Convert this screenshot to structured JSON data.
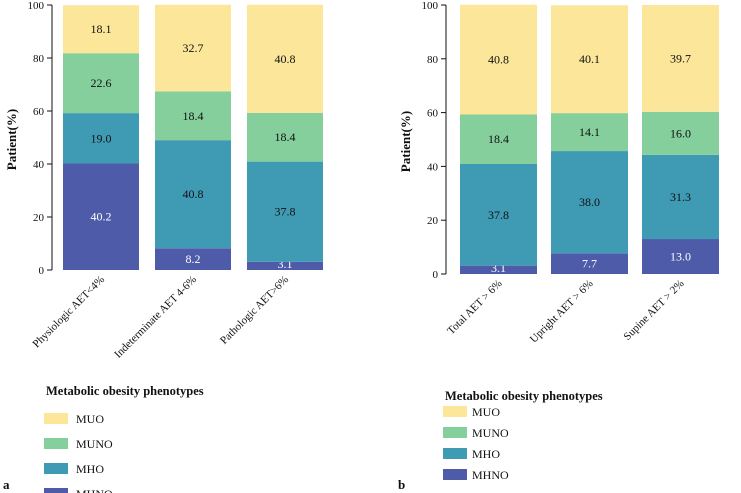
{
  "chart_data": [
    {
      "type": "bar",
      "stacked": true,
      "panel_label": "a",
      "ylabel": "Patient(%)",
      "ylim": [
        0,
        100
      ],
      "yticks": [
        "0",
        "20",
        "40",
        "60",
        "80",
        "100"
      ],
      "categories": [
        "Physiologic AET<4%",
        "Indeterminate AET 4-6%",
        "Pathologic AET>6%"
      ],
      "series": [
        {
          "name": "MHNO",
          "color": "#4e5ba8",
          "values": [
            40.2,
            8.2,
            3.1
          ],
          "labels": [
            "40.2",
            "8.2",
            "3.1"
          ]
        },
        {
          "name": "MHO",
          "color": "#3f9ab4",
          "values": [
            19.0,
            40.8,
            37.8
          ],
          "labels": [
            "19.0",
            "40.8",
            "37.8"
          ]
        },
        {
          "name": "MUNO",
          "color": "#84cf9c",
          "values": [
            22.6,
            18.4,
            18.4
          ],
          "labels": [
            "22.6",
            "18.4",
            "18.4"
          ]
        },
        {
          "name": "MUO",
          "color": "#fbe69a",
          "values": [
            18.1,
            32.7,
            40.8
          ],
          "labels": [
            "18.1",
            "32.7",
            "40.8"
          ]
        }
      ],
      "legend": {
        "title": "Metabolic obesity phenotypes",
        "items": [
          "MUO",
          "MUNO",
          "MHO",
          "MHNO"
        ]
      }
    },
    {
      "type": "bar",
      "stacked": true,
      "panel_label": "b",
      "ylabel": "Patient(%)",
      "ylim": [
        0,
        100
      ],
      "yticks": [
        "0",
        "20",
        "40",
        "60",
        "80",
        "100"
      ],
      "categories": [
        "Total AET > 6%",
        "Upright AET > 6%",
        "Supine AET > 2%"
      ],
      "series": [
        {
          "name": "MHNO",
          "color": "#4e5ba8",
          "values": [
            3.1,
            7.7,
            13.0
          ],
          "labels": [
            "3.1",
            "7.7",
            "13.0"
          ]
        },
        {
          "name": "MHO",
          "color": "#3f9ab4",
          "values": [
            37.8,
            38.0,
            31.3
          ],
          "labels": [
            "37.8",
            "38.0",
            "31.3"
          ]
        },
        {
          "name": "MUNO",
          "color": "#84cf9c",
          "values": [
            18.4,
            14.1,
            16.0
          ],
          "labels": [
            "18.4",
            "14.1",
            "16.0"
          ]
        },
        {
          "name": "MUO",
          "color": "#fbe69a",
          "values": [
            40.8,
            40.1,
            39.7
          ],
          "labels": [
            "40.8",
            "40.1",
            "39.7"
          ]
        }
      ],
      "legend": {
        "title": "Metabolic obesity phenotypes",
        "items": [
          "MUO",
          "MUNO",
          "MHO",
          "MHNO"
        ]
      }
    }
  ]
}
